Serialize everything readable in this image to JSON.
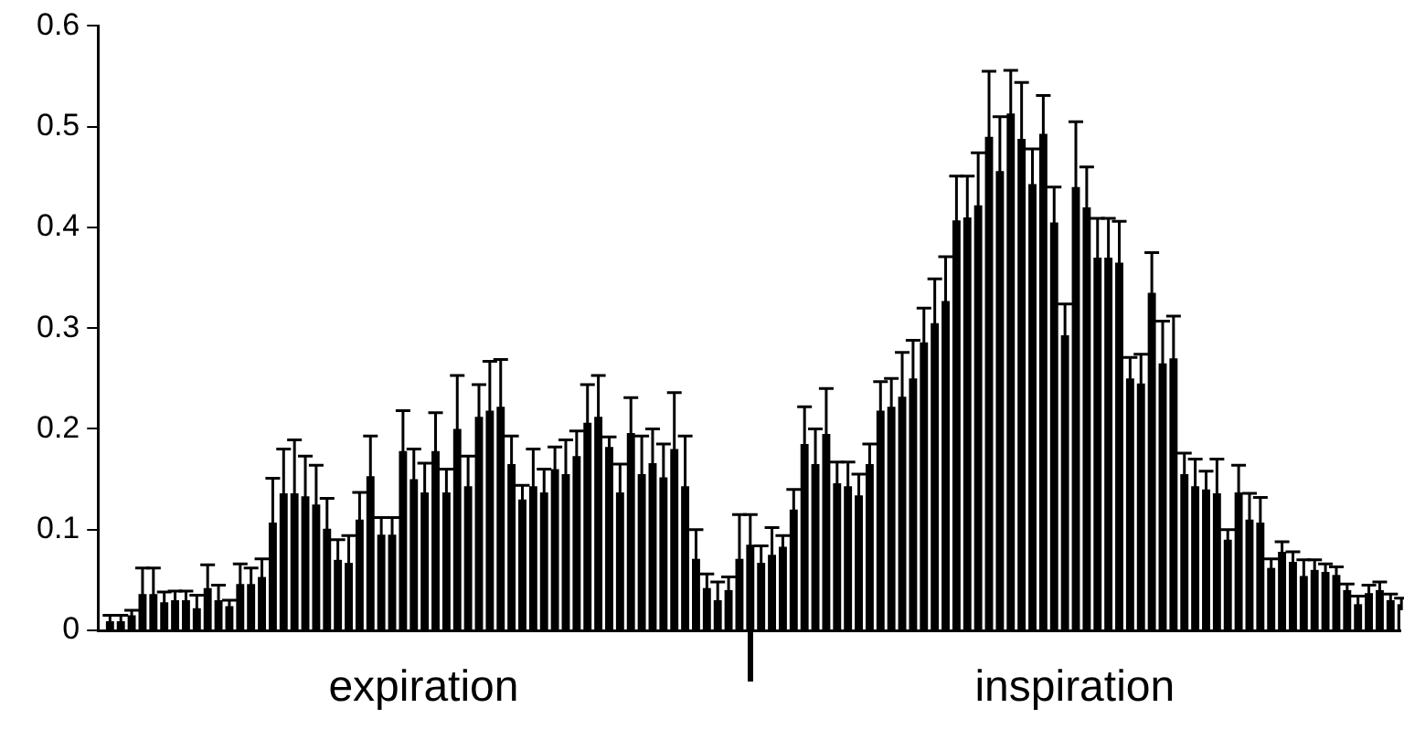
{
  "chart_data": {
    "type": "bar",
    "color": "#000000",
    "categories": [
      null,
      null,
      null,
      null,
      null,
      null,
      null,
      null,
      null,
      null,
      null,
      null,
      null,
      null,
      null,
      null,
      null,
      null,
      null,
      null,
      null,
      null,
      null,
      null,
      null,
      null,
      null,
      null,
      null,
      null,
      null,
      null,
      null,
      null,
      null,
      null,
      null,
      null,
      null,
      null,
      null,
      null,
      null,
      null,
      null,
      null,
      null,
      null,
      null,
      null,
      null,
      null,
      null,
      null,
      null,
      null,
      null,
      null,
      null,
      null,
      null,
      null,
      null,
      null,
      null,
      null,
      null,
      null,
      null,
      null,
      null,
      null,
      null,
      null,
      null,
      null,
      null,
      null,
      null,
      null,
      null,
      null,
      null,
      null,
      null,
      null,
      null,
      null,
      null,
      null,
      null,
      null,
      null,
      null,
      null,
      null,
      null,
      null,
      null,
      null,
      null,
      null,
      null,
      null,
      null,
      null,
      null,
      null,
      null,
      null,
      null,
      null,
      null,
      null,
      null,
      null,
      null,
      null,
      null,
      null
    ],
    "values": [
      0.009,
      0.009,
      0.015,
      0.036,
      0.036,
      0.028,
      0.03,
      0.03,
      0.022,
      0.042,
      0.03,
      0.024,
      0.046,
      0.046,
      0.053,
      0.107,
      0.136,
      0.136,
      0.133,
      0.125,
      0.101,
      0.07,
      0.067,
      0.11,
      0.153,
      0.095,
      0.095,
      0.178,
      0.15,
      0.137,
      0.178,
      0.137,
      0.2,
      0.143,
      0.212,
      0.218,
      0.222,
      0.165,
      0.13,
      0.143,
      0.137,
      0.16,
      0.155,
      0.173,
      0.206,
      0.212,
      0.182,
      0.137,
      0.196,
      0.155,
      0.166,
      0.152,
      0.18,
      0.143,
      0.071,
      0.042,
      0.03,
      0.04,
      0.071,
      0.085,
      0.067,
      0.075,
      0.083,
      0.12,
      0.185,
      0.165,
      0.195,
      0.146,
      0.143,
      0.134,
      0.165,
      0.218,
      0.222,
      0.232,
      0.25,
      0.286,
      0.305,
      0.327,
      0.407,
      0.41,
      0.422,
      0.49,
      0.456,
      0.513,
      0.488,
      0.443,
      0.493,
      0.405,
      0.293,
      0.44,
      0.42,
      0.37,
      0.37,
      0.365,
      0.25,
      0.245,
      0.335,
      0.265,
      0.27,
      0.155,
      0.143,
      0.14,
      0.136,
      0.09,
      0.137,
      0.11,
      0.107,
      0.062,
      0.078,
      0.068,
      0.054,
      0.06,
      0.058,
      0.055,
      0.04,
      0.026,
      0.037,
      0.04,
      0.03,
      0.026
    ],
    "errors": [
      0.006,
      0.006,
      0.005,
      0.026,
      0.026,
      0.01,
      0.009,
      0.009,
      0.013,
      0.023,
      0.015,
      0.006,
      0.02,
      0.016,
      0.018,
      0.044,
      0.044,
      0.053,
      0.04,
      0.039,
      0.03,
      0.02,
      0.027,
      0.027,
      0.04,
      0.017,
      0.017,
      0.04,
      0.03,
      0.029,
      0.038,
      0.023,
      0.053,
      0.03,
      0.032,
      0.049,
      0.047,
      0.028,
      0.014,
      0.037,
      0.023,
      0.022,
      0.034,
      0.025,
      0.038,
      0.041,
      0.01,
      0.028,
      0.035,
      0.038,
      0.034,
      0.033,
      0.056,
      0.05,
      0.029,
      0.014,
      0.018,
      0.013,
      0.044,
      0.03,
      0.017,
      0.027,
      0.011,
      0.02,
      0.037,
      0.035,
      0.045,
      0.021,
      0.024,
      0.021,
      0.02,
      0.029,
      0.028,
      0.044,
      0.038,
      0.034,
      0.044,
      0.044,
      0.044,
      0.041,
      0.052,
      0.065,
      0.054,
      0.043,
      0.056,
      0.035,
      0.038,
      0.035,
      0.031,
      0.065,
      0.04,
      0.039,
      0.039,
      0.041,
      0.021,
      0.029,
      0.04,
      0.042,
      0.042,
      0.021,
      0.027,
      0.018,
      0.034,
      0.01,
      0.027,
      0.026,
      0.025,
      0.009,
      0.01,
      0.01,
      0.016,
      0.01,
      0.008,
      0.008,
      0.006,
      0.008,
      0.008,
      0.008,
      0.006,
      0.006
    ],
    "ylim": [
      0,
      0.6
    ],
    "yticks": [
      0,
      0.1,
      0.2,
      0.3,
      0.4,
      0.5,
      0.6
    ],
    "annotations": [
      "expiration",
      "inspiration"
    ]
  }
}
